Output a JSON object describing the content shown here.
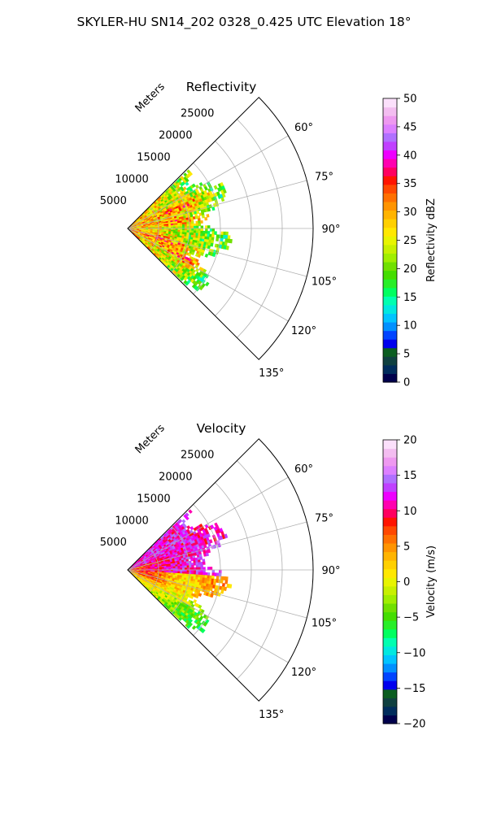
{
  "figure": {
    "title": "SKYLER-HU  SN14_202  0328_0.425 UTC Elevation 18°"
  },
  "chart_data": [
    {
      "type": "heatmap",
      "subtype": "polar-sector (radar PPI)",
      "title": "Reflectivity",
      "radial_axis_label": "Meters",
      "radial_ticks": [
        5000,
        10000,
        15000,
        20000,
        25000
      ],
      "radial_tick_labels": [
        "5000",
        "10000",
        "15000",
        "20000",
        "25000"
      ],
      "radial_lim": [
        0,
        30000
      ],
      "angle_ticks": [
        60,
        75,
        90,
        105,
        120,
        135
      ],
      "angle_tick_labels": [
        "60°",
        "75°",
        "90°",
        "105°",
        "120°",
        "135°"
      ],
      "angle_lim": [
        45,
        135
      ],
      "data_max_range_approx": 17000,
      "grid": true,
      "colorbar": {
        "label": "Reflectivity dBZ",
        "min": 0,
        "max": 50,
        "ticks": [
          0,
          5,
          10,
          15,
          20,
          25,
          30,
          35,
          40,
          45,
          50
        ],
        "tick_labels": [
          "0",
          "5",
          "10",
          "15",
          "20",
          "25",
          "30",
          "35",
          "40",
          "45",
          "50"
        ],
        "colors": [
          "#00004c",
          "#002c5c",
          "#0f4040",
          "#0b5d20",
          "#0000ee",
          "#0044ff",
          "#0090ff",
          "#00c4ff",
          "#00e8e0",
          "#00ffb0",
          "#00ff60",
          "#28ee28",
          "#44dd00",
          "#70e000",
          "#a0ee00",
          "#c8f000",
          "#e8f400",
          "#ffe800",
          "#ffd000",
          "#ffb400",
          "#ff9400",
          "#ff7000",
          "#ff4800",
          "#ff1400",
          "#ff0060",
          "#ff00b0",
          "#ee00ff",
          "#c040ff",
          "#b070ff",
          "#dd80ff",
          "#ee99f0",
          "#f3bdf0",
          "#fbe0fb"
        ]
      }
    },
    {
      "type": "heatmap",
      "subtype": "polar-sector (radar PPI)",
      "title": "Velocity",
      "radial_axis_label": "Meters",
      "radial_ticks": [
        5000,
        10000,
        15000,
        20000,
        25000
      ],
      "radial_tick_labels": [
        "5000",
        "10000",
        "15000",
        "20000",
        "25000"
      ],
      "radial_lim": [
        0,
        30000
      ],
      "angle_ticks": [
        60,
        75,
        90,
        105,
        120,
        135
      ],
      "angle_tick_labels": [
        "60°",
        "75°",
        "90°",
        "105°",
        "120°",
        "135°"
      ],
      "angle_lim": [
        45,
        135
      ],
      "data_max_range_approx": 17000,
      "grid": true,
      "colorbar": {
        "label": "Velocity (m/s)",
        "min": -20,
        "max": 20,
        "ticks": [
          -20,
          -15,
          -10,
          -5,
          0,
          5,
          10,
          15,
          20
        ],
        "tick_labels": [
          "−20",
          "−15",
          "−10",
          "−5",
          "0",
          "5",
          "10",
          "15",
          "20"
        ],
        "colors": [
          "#00004c",
          "#002c5c",
          "#0f4040",
          "#0b5d20",
          "#0000ee",
          "#0044ff",
          "#0090ff",
          "#00c4ff",
          "#00e8e0",
          "#00ffb0",
          "#00ff60",
          "#28ee28",
          "#44dd00",
          "#70e000",
          "#a0ee00",
          "#c8f000",
          "#e8f400",
          "#ffe800",
          "#ffd000",
          "#ffb400",
          "#ff9400",
          "#ff7000",
          "#ff4800",
          "#ff1400",
          "#ff0060",
          "#ff00b0",
          "#ee00ff",
          "#c040ff",
          "#b070ff",
          "#dd80ff",
          "#ee99f0",
          "#f3bdf0",
          "#fbe0fb"
        ]
      }
    }
  ]
}
